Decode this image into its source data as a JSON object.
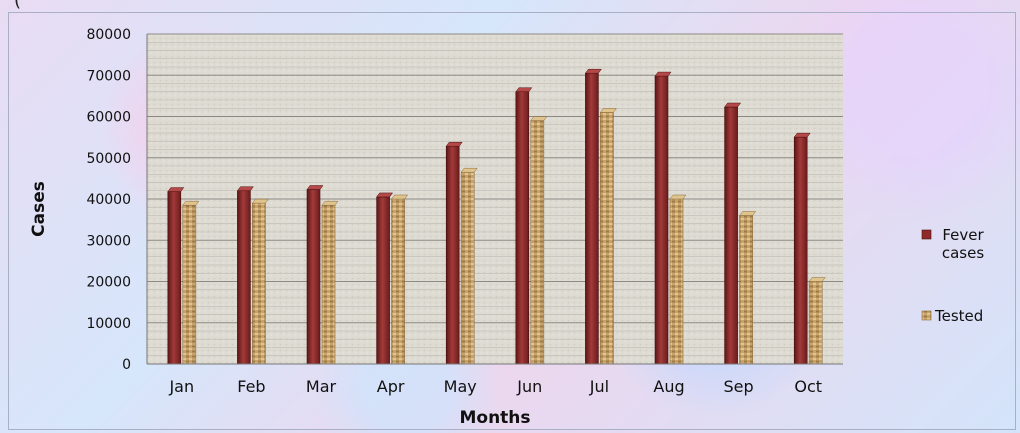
{
  "chart_data": {
    "type": "bar",
    "title": "",
    "top_text": "(",
    "xlabel": "Months",
    "ylabel": "Cases",
    "ylim": [
      0,
      80000
    ],
    "yticks": [
      0,
      10000,
      20000,
      30000,
      40000,
      50000,
      60000,
      70000,
      80000
    ],
    "categories": [
      "Jan",
      "Feb",
      "Mar",
      "Apr",
      "May",
      "Jun",
      "Jul",
      "Aug",
      "Sep",
      "Oct"
    ],
    "series": [
      {
        "name": "Fever cases",
        "legend_lines": [
          "Fever",
          "cases"
        ],
        "color": "#8f2a2a",
        "values": [
          41800,
          42000,
          42300,
          40500,
          52800,
          66000,
          70500,
          69800,
          62300,
          55000
        ]
      },
      {
        "name": "Tested",
        "legend_lines": [
          "Tested"
        ],
        "color": "#c9a46a",
        "values": [
          38500,
          39000,
          38500,
          40000,
          46500,
          59000,
          61000,
          40000,
          36000,
          20000
        ]
      }
    ],
    "grid": true,
    "legend_position": "right"
  }
}
